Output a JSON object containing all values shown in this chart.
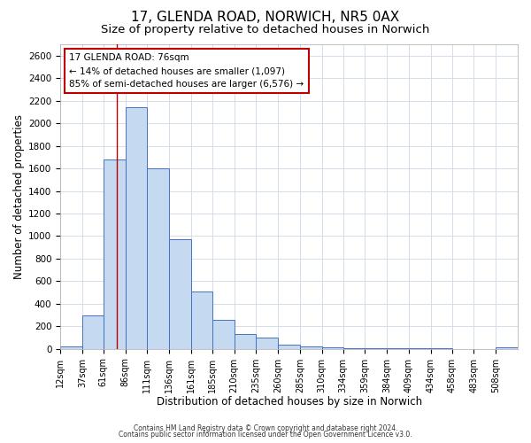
{
  "title1": "17, GLENDA ROAD, NORWICH, NR5 0AX",
  "title2": "Size of property relative to detached houses in Norwich",
  "xlabel": "Distribution of detached houses by size in Norwich",
  "ylabel": "Number of detached properties",
  "bin_labels": [
    "12sqm",
    "37sqm",
    "61sqm",
    "86sqm",
    "111sqm",
    "136sqm",
    "161sqm",
    "185sqm",
    "210sqm",
    "235sqm",
    "260sqm",
    "285sqm",
    "310sqm",
    "334sqm",
    "359sqm",
    "384sqm",
    "409sqm",
    "434sqm",
    "458sqm",
    "483sqm",
    "508sqm"
  ],
  "bin_edges": [
    12,
    37,
    61,
    86,
    111,
    136,
    161,
    185,
    210,
    235,
    260,
    285,
    310,
    334,
    359,
    384,
    409,
    434,
    458,
    483,
    508
  ],
  "bar_heights": [
    20,
    300,
    1680,
    2140,
    1600,
    970,
    510,
    255,
    130,
    100,
    40,
    20,
    10,
    5,
    5,
    3,
    2,
    2,
    1,
    1,
    15
  ],
  "bar_color": "#c5d9f1",
  "bar_edge_color": "#4472c4",
  "vline_x": 76,
  "vline_color": "#c00000",
  "ylim": [
    0,
    2700
  ],
  "yticks": [
    0,
    200,
    400,
    600,
    800,
    1000,
    1200,
    1400,
    1600,
    1800,
    2000,
    2200,
    2400,
    2600
  ],
  "annotation_title": "17 GLENDA ROAD: 76sqm",
  "annotation_line1": "← 14% of detached houses are smaller (1,097)",
  "annotation_line2": "85% of semi-detached houses are larger (6,576) →",
  "footnote1": "Contains HM Land Registry data © Crown copyright and database right 2024.",
  "footnote2": "Contains public sector information licensed under the Open Government Licence v3.0.",
  "background_color": "#ffffff",
  "grid_color": "#d0d8e8",
  "title1_fontsize": 11,
  "title2_fontsize": 9.5,
  "xlabel_fontsize": 8.5,
  "ylabel_fontsize": 8.5,
  "tick_fontsize": 7.5,
  "xtick_fontsize": 7,
  "annot_fontsize": 7.5,
  "footnote_fontsize": 5.5
}
